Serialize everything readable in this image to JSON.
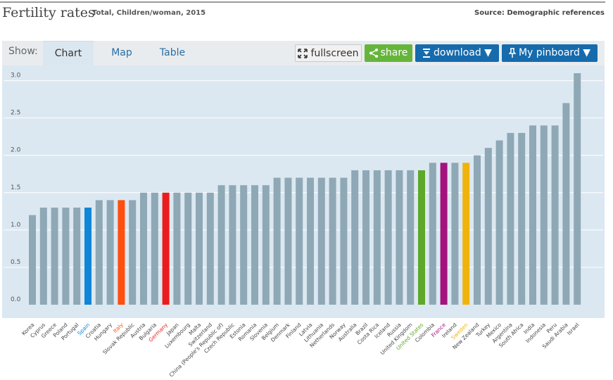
{
  "header": {
    "title": "Fertility rates",
    "subtitle": "Total, Children/woman, 2015",
    "source": "Source: Demographic references"
  },
  "toolbar": {
    "show_label": "Show:",
    "tabs": [
      "Chart",
      "Map",
      "Table"
    ],
    "fullscreen_label": "fullscreen",
    "share_label": "share",
    "download_label": "download ▼",
    "pinboard_label": "My pinboard ▼"
  },
  "colors": {
    "default_bar": "#8ea8b6",
    "highlights": {
      "Spain": "#0f87d6",
      "Italy": "#ff4f0f",
      "Germany": "#ea1d1d",
      "United States": "#5ea82a",
      "France": "#a4127e",
      "Sweden": "#f0b30b"
    }
  },
  "chart_data": {
    "type": "bar",
    "title": "Fertility rates",
    "subtitle": "Total, Children/woman, 2015",
    "ylim": [
      0,
      3.1
    ],
    "yticks": [
      "0.0",
      "0.5",
      "1.0",
      "1.5",
      "2.0",
      "2.5",
      "3.0"
    ],
    "categories": [
      "Korea",
      "Cyprus",
      "Greece",
      "Poland",
      "Portugal",
      "Spain",
      "Croatia",
      "Hungary",
      "Italy",
      "Slovak Republic",
      "Austria",
      "Bulgaria",
      "Germany",
      "Japan",
      "Luxembourg",
      "Malta",
      "Switzerland",
      "China (People's Republic of)",
      "Czech Republic",
      "Estonia",
      "Romania",
      "Slovenia",
      "Belgium",
      "Denmark",
      "Finland",
      "Latvia",
      "Lithuania",
      "Netherlands",
      "Norway",
      "Australia",
      "Brazil",
      "Costa Rica",
      "Iceland",
      "Russia",
      "United Kingdom",
      "United States",
      "Colombia",
      "France",
      "Ireland",
      "Sweden",
      "New Zealand",
      "Turkey",
      "Mexico",
      "Argentina",
      "South Africa",
      "India",
      "Indonesia",
      "Peru",
      "Saudi Arabia",
      "Israel"
    ],
    "values": [
      1.2,
      1.3,
      1.3,
      1.3,
      1.3,
      1.3,
      1.4,
      1.4,
      1.4,
      1.4,
      1.5,
      1.5,
      1.5,
      1.5,
      1.5,
      1.5,
      1.5,
      1.6,
      1.6,
      1.6,
      1.6,
      1.6,
      1.7,
      1.7,
      1.7,
      1.7,
      1.7,
      1.7,
      1.7,
      1.8,
      1.8,
      1.8,
      1.8,
      1.8,
      1.8,
      1.8,
      1.9,
      1.9,
      1.9,
      1.9,
      2.0,
      2.1,
      2.2,
      2.3,
      2.3,
      2.4,
      2.4,
      2.4,
      2.7,
      3.1
    ]
  }
}
